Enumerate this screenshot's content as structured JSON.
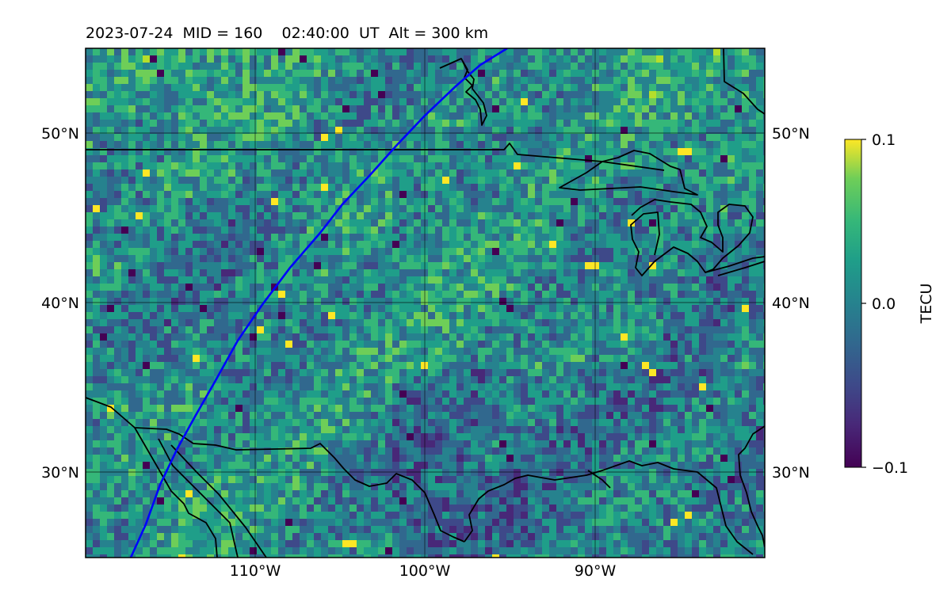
{
  "title": "2023-07-24  MID = 160    02:40:00  UT  Alt = 300 km",
  "map": {
    "lon_range": [
      -120,
      -80
    ],
    "lat_range": [
      25,
      55
    ],
    "lon_ticks": [
      {
        "value": -110,
        "label": "110°W"
      },
      {
        "value": -100,
        "label": "100°W"
      },
      {
        "value": -90,
        "label": "90°W"
      }
    ],
    "lat_ticks": [
      {
        "value": 50,
        "label": "50°N"
      },
      {
        "value": 40,
        "label": "40°N"
      },
      {
        "value": 30,
        "label": "30°N"
      }
    ],
    "grid": true,
    "track_color": "#0000ff",
    "coastline_color": "#000000"
  },
  "colorbar": {
    "label": "TECU",
    "colormap": "viridis",
    "range": [
      -0.1,
      0.1
    ],
    "ticks": [
      {
        "value": 0.1,
        "label": "0.1"
      },
      {
        "value": 0.0,
        "label": "0.0"
      },
      {
        "value": -0.1,
        "label": "−0.1"
      }
    ]
  }
}
